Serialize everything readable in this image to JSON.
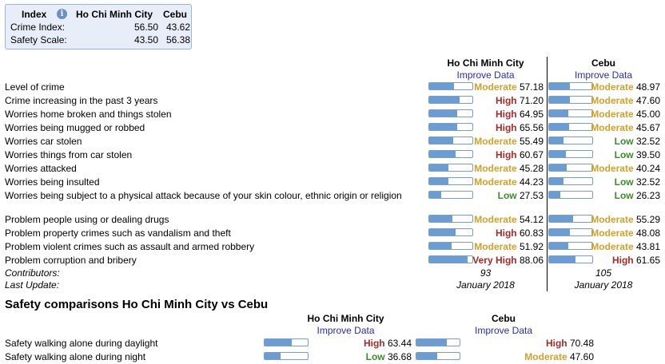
{
  "index_box": {
    "header": "Index",
    "col1": "Ho Chi Minh City",
    "col2": "Cebu",
    "rows": [
      {
        "label": "Crime Index:",
        "v1": "56.50",
        "v2": "43.62"
      },
      {
        "label": "Safety Scale:",
        "v1": "43.50",
        "v2": "56.38"
      }
    ]
  },
  "crime": {
    "city1": "Ho Chi Minh City",
    "city2": "Cebu",
    "improve_label": "Improve Data",
    "rows": [
      {
        "label": "Level of crime",
        "c1": {
          "level": "Moderate",
          "value": "57.18",
          "pct": 57.18
        },
        "c2": {
          "level": "Moderate",
          "value": "48.97",
          "pct": 48.97
        }
      },
      {
        "label": "Crime increasing in the past 3 years",
        "c1": {
          "level": "High",
          "value": "71.20",
          "pct": 71.2
        },
        "c2": {
          "level": "Moderate",
          "value": "47.60",
          "pct": 47.6
        }
      },
      {
        "label": "Worries home broken and things stolen",
        "c1": {
          "level": "High",
          "value": "64.95",
          "pct": 64.95
        },
        "c2": {
          "level": "Moderate",
          "value": "45.00",
          "pct": 45.0
        }
      },
      {
        "label": "Worries being mugged or robbed",
        "c1": {
          "level": "High",
          "value": "65.56",
          "pct": 65.56
        },
        "c2": {
          "level": "Moderate",
          "value": "45.67",
          "pct": 45.67
        }
      },
      {
        "label": "Worries car stolen",
        "c1": {
          "level": "Moderate",
          "value": "55.49",
          "pct": 55.49
        },
        "c2": {
          "level": "Low",
          "value": "32.52",
          "pct": 32.52
        }
      },
      {
        "label": "Worries things from car stolen",
        "c1": {
          "level": "High",
          "value": "60.67",
          "pct": 60.67
        },
        "c2": {
          "level": "Low",
          "value": "39.50",
          "pct": 39.5
        }
      },
      {
        "label": "Worries attacked",
        "c1": {
          "level": "Moderate",
          "value": "45.28",
          "pct": 45.28
        },
        "c2": {
          "level": "Moderate",
          "value": "40.24",
          "pct": 40.24
        }
      },
      {
        "label": "Worries being insulted",
        "c1": {
          "level": "Moderate",
          "value": "44.23",
          "pct": 44.23
        },
        "c2": {
          "level": "Low",
          "value": "32.52",
          "pct": 32.52
        }
      },
      {
        "label": "Worries being subject to a physical attack because of your skin colour, ethnic origin or religion",
        "c1": {
          "level": "Low",
          "value": "27.53",
          "pct": 27.53
        },
        "c2": {
          "level": "Low",
          "value": "26.23",
          "pct": 26.23
        }
      },
      {
        "label": "Problem people using or dealing drugs",
        "c1": {
          "level": "Moderate",
          "value": "54.12",
          "pct": 54.12
        },
        "c2": {
          "level": "Moderate",
          "value": "55.29",
          "pct": 55.29
        }
      },
      {
        "label": "Problem property crimes such as vandalism and theft",
        "c1": {
          "level": "High",
          "value": "60.83",
          "pct": 60.83
        },
        "c2": {
          "level": "Moderate",
          "value": "48.08",
          "pct": 48.08
        }
      },
      {
        "label": "Problem violent crimes such as assault and armed robbery",
        "c1": {
          "level": "Moderate",
          "value": "51.92",
          "pct": 51.92
        },
        "c2": {
          "level": "Moderate",
          "value": "43.81",
          "pct": 43.81
        }
      },
      {
        "label": "Problem corruption and bribery",
        "c1": {
          "level": "Very High",
          "value": "88.06",
          "pct": 88.06
        },
        "c2": {
          "level": "High",
          "value": "61.65",
          "pct": 61.65
        }
      }
    ],
    "contributors_label": "Contributors:",
    "contributors1": "93",
    "contributors2": "105",
    "last_update_label": "Last Update:",
    "last_update1": "January 2018",
    "last_update2": "January 2018"
  },
  "safety": {
    "title": "Safety comparisons Ho Chi Minh City vs Cebu",
    "city1": "Ho Chi Minh City",
    "city2": "Cebu",
    "improve_label": "Improve Data",
    "rows": [
      {
        "label": "Safety walking alone during daylight",
        "c1": {
          "level": "High",
          "value": "63.44",
          "pct": 63.44
        },
        "c2": {
          "level": "High",
          "value": "70.48",
          "pct": 70.48
        }
      },
      {
        "label": "Safety walking alone during night",
        "c1": {
          "level": "Low",
          "value": "36.68",
          "pct": 36.68
        },
        "c2": {
          "level": "Moderate",
          "value": "47.60",
          "pct": 47.6
        }
      }
    ]
  },
  "colors": {
    "moderate": "#d4a02b",
    "high": "#a52a2a",
    "low": "#3a8b2a",
    "bar_fill": "#6b9cd2",
    "link": "#2b2bb5"
  }
}
